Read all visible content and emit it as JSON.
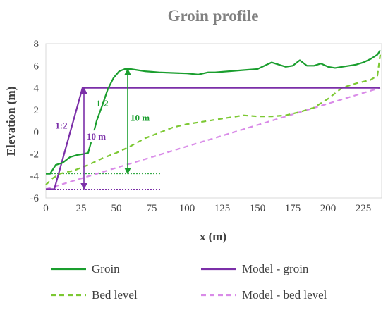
{
  "chart_data": {
    "type": "line",
    "title": "Groin profile",
    "xlabel": "x (m)",
    "ylabel": "Elevation (m)",
    "xlim": [
      0,
      238
    ],
    "ylim": [
      -6,
      8
    ],
    "xticks": [
      0,
      25,
      50,
      75,
      100,
      125,
      150,
      175,
      200,
      225
    ],
    "yticks": [
      -6,
      -4,
      -2,
      0,
      2,
      4,
      6,
      8
    ],
    "grid": false,
    "legend_position": "bottom",
    "series": [
      {
        "name": "Groin",
        "color": "#1a9e2e",
        "style": "solid",
        "x": [
          0,
          3,
          7,
          12,
          17,
          22,
          27,
          30,
          33,
          36,
          40,
          44,
          48,
          52,
          56,
          60,
          65,
          70,
          75,
          80,
          90,
          100,
          108,
          115,
          120,
          130,
          140,
          150,
          155,
          160,
          165,
          170,
          175,
          180,
          185,
          190,
          195,
          200,
          205,
          210,
          215,
          220,
          225,
          230,
          235,
          237
        ],
        "y": [
          -3.8,
          -3.8,
          -3.0,
          -2.8,
          -2.3,
          -2.1,
          -2.0,
          -1.9,
          -0.5,
          1.0,
          2.4,
          3.9,
          4.9,
          5.5,
          5.7,
          5.7,
          5.6,
          5.5,
          5.45,
          5.4,
          5.35,
          5.3,
          5.2,
          5.4,
          5.4,
          5.5,
          5.6,
          5.7,
          6.0,
          6.3,
          6.1,
          5.9,
          6.0,
          6.5,
          6.0,
          6.0,
          6.2,
          5.9,
          5.8,
          5.9,
          6.0,
          6.1,
          6.3,
          6.6,
          7.0,
          7.4
        ]
      },
      {
        "name": "Model - groin",
        "color": "#7b2fa8",
        "style": "solid",
        "x": [
          0,
          6,
          26,
          50,
          100,
          150,
          200,
          237
        ],
        "y": [
          -5.2,
          -5.2,
          4.0,
          4.0,
          4.0,
          4.0,
          4.0,
          4.0
        ]
      },
      {
        "name": "Bed level",
        "color": "#7cc832",
        "style": "dashed",
        "x": [
          0,
          5,
          10,
          20,
          30,
          40,
          50,
          60,
          70,
          80,
          90,
          100,
          110,
          120,
          130,
          140,
          150,
          160,
          170,
          180,
          190,
          200,
          210,
          220,
          230,
          235,
          237
        ],
        "y": [
          -4.8,
          -4.2,
          -3.8,
          -3.5,
          -3.0,
          -2.4,
          -1.9,
          -1.3,
          -0.6,
          -0.1,
          0.4,
          0.7,
          0.9,
          1.1,
          1.3,
          1.5,
          1.4,
          1.4,
          1.5,
          1.8,
          2.2,
          3.0,
          4.0,
          4.4,
          4.7,
          5.1,
          7.0
        ]
      },
      {
        "name": "Model - bed level",
        "color": "#d98be8",
        "style": "dashed",
        "x": [
          0,
          237
        ],
        "y": [
          -5.2,
          4.0
        ]
      }
    ],
    "annotations": [
      {
        "text": "1:2",
        "color": "#1a9e2e",
        "x": 40,
        "y": 2.3
      },
      {
        "text": "1:2",
        "color": "#7b2fa8",
        "x": 11,
        "y": 0.3
      },
      {
        "text": "10 m",
        "color": "#1a9e2e",
        "x": 58,
        "y": 1.0
      },
      {
        "text": "10 m",
        "color": "#7b2fa8",
        "x": 27,
        "y": -0.7
      }
    ],
    "reference_lines": [
      {
        "color": "#1a9e2e",
        "x1": 0,
        "x2": 82,
        "y": -3.8
      },
      {
        "color": "#7b2fa8",
        "x1": 0,
        "x2": 82,
        "y": -5.2
      }
    ],
    "dimension_arrows": [
      {
        "color": "#1a9e2e",
        "x": 58,
        "y_from": -3.8,
        "y_to": 5.7
      },
      {
        "color": "#7b2fa8",
        "x": 27,
        "y_from": -5.2,
        "y_to": 4.0
      }
    ]
  }
}
